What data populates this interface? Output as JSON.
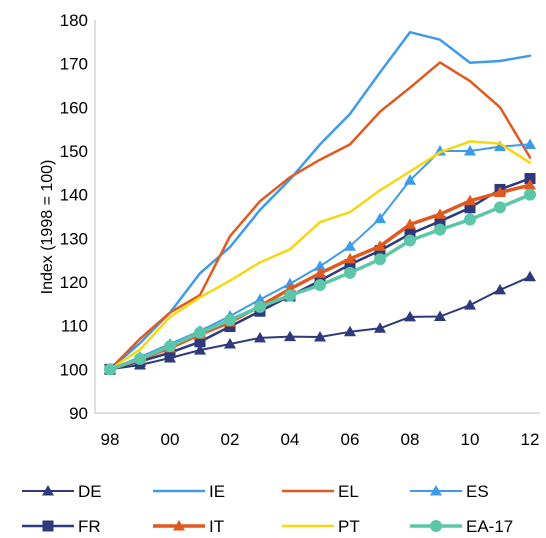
{
  "chart_data": {
    "type": "line",
    "title": "",
    "xlabel": "",
    "ylabel": "Index (1998 = 100)",
    "ylim": [
      90,
      180
    ],
    "yticks": [
      90,
      100,
      110,
      120,
      130,
      140,
      150,
      160,
      170,
      180
    ],
    "xlim": [
      1998,
      2012
    ],
    "x": [
      1998,
      1999,
      2000,
      2001,
      2002,
      2003,
      2004,
      2005,
      2006,
      2007,
      2008,
      2009,
      2010,
      2011,
      2012
    ],
    "xticks": [
      {
        "value": 1998,
        "label": "98"
      },
      {
        "value": 2000,
        "label": "00"
      },
      {
        "value": 2002,
        "label": "02"
      },
      {
        "value": 2004,
        "label": "04"
      },
      {
        "value": 2006,
        "label": "06"
      },
      {
        "value": 2008,
        "label": "08"
      },
      {
        "value": 2010,
        "label": "10"
      },
      {
        "value": 2012,
        "label": "12"
      }
    ],
    "grid": false,
    "legend_position": "bottom",
    "series": [
      {
        "name": "DE",
        "color": "#2e3a7c",
        "marker": "triangle",
        "width": 2,
        "values": [
          100,
          101,
          102.6,
          104.4,
          105.8,
          107.2,
          107.5,
          107.4,
          108.6,
          109.4,
          112,
          112.1,
          114.7,
          118.2,
          121.2
        ]
      },
      {
        "name": "IE",
        "color": "#3d9be9",
        "marker": "none",
        "width": 2.5,
        "values": [
          100,
          106,
          113,
          122,
          128,
          136.5,
          143.5,
          151.5,
          158.5,
          168,
          177.2,
          175.5,
          170.2,
          170.6,
          171.8
        ]
      },
      {
        "name": "EL",
        "color": "#e05a20",
        "marker": "none",
        "width": 2.5,
        "values": [
          100,
          107,
          113,
          117,
          130.5,
          138.5,
          144,
          148,
          151.5,
          159,
          164.5,
          170.3,
          166,
          160,
          148.5
        ]
      },
      {
        "name": "ES",
        "color": "#3d9be9",
        "marker": "triangle",
        "width": 2,
        "values": [
          100,
          102.8,
          105.8,
          108.8,
          112.2,
          116,
          119.6,
          123.6,
          128.2,
          134.5,
          143.3,
          150,
          150,
          151,
          151.5
        ]
      },
      {
        "name": "FR",
        "color": "#2e3a7c",
        "marker": "square",
        "width": 2.5,
        "values": [
          100,
          101.8,
          103.8,
          106.3,
          109.8,
          113.3,
          116.8,
          120.3,
          124,
          127.2,
          131,
          133.9,
          137,
          141.2,
          143.7
        ]
      },
      {
        "name": "PT",
        "color": "#f5d80f",
        "marker": "none",
        "width": 2.5,
        "values": [
          100,
          104.5,
          112,
          116.5,
          120.3,
          124.5,
          127.5,
          133.7,
          136,
          141,
          145.3,
          149.7,
          152.2,
          151.7,
          147.3
        ]
      },
      {
        "name": "IT",
        "color": "#e05a20",
        "marker": "triangle",
        "width": 3.5,
        "values": [
          100,
          102.3,
          104.9,
          108,
          110.8,
          114.5,
          118.4,
          122,
          125.3,
          128.2,
          133.2,
          135.5,
          138.6,
          140.5,
          142.2
        ]
      },
      {
        "name": "EA-17",
        "color": "#5cc7a8",
        "marker": "circle",
        "width": 3.5,
        "values": [
          100,
          102.4,
          105.3,
          108.4,
          111.3,
          114.3,
          116.9,
          119.3,
          122.1,
          125.2,
          129.5,
          132,
          134.3,
          137.1,
          140
        ]
      }
    ],
    "legend": [
      {
        "name": "DE",
        "series": "DE"
      },
      {
        "name": "IE",
        "series": "IE"
      },
      {
        "name": "EL",
        "series": "EL"
      },
      {
        "name": "ES",
        "series": "ES"
      },
      {
        "name": "FR",
        "series": "FR"
      },
      {
        "name": "IT",
        "series": "IT"
      },
      {
        "name": "PT",
        "series": "PT"
      },
      {
        "name": "EA-17",
        "series": "EA-17"
      }
    ]
  }
}
